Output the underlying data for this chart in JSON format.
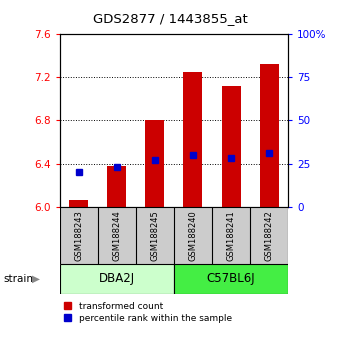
{
  "title": "GDS2877 / 1443855_at",
  "samples": [
    "GSM188243",
    "GSM188244",
    "GSM188245",
    "GSM188240",
    "GSM188241",
    "GSM188242"
  ],
  "red_values": [
    6.07,
    6.38,
    6.8,
    7.25,
    7.12,
    7.32
  ],
  "blue_values": [
    6.32,
    6.37,
    6.43,
    6.48,
    6.45,
    6.5
  ],
  "y_min": 6.0,
  "y_max": 7.6,
  "y_ticks_red": [
    6.0,
    6.4,
    6.8,
    7.2,
    7.6
  ],
  "y_ticks_blue": [
    0,
    25,
    50,
    75,
    100
  ],
  "bar_color": "#cc0000",
  "dot_color": "#0000cc",
  "bar_width": 0.5,
  "sample_bg": "#cccccc",
  "dba_color": "#ccffcc",
  "c57_color": "#44ee44",
  "group_label_dba": "DBA2J",
  "group_label_c57": "C57BL6J",
  "legend_red": "transformed count",
  "legend_blue": "percentile rank within the sample"
}
